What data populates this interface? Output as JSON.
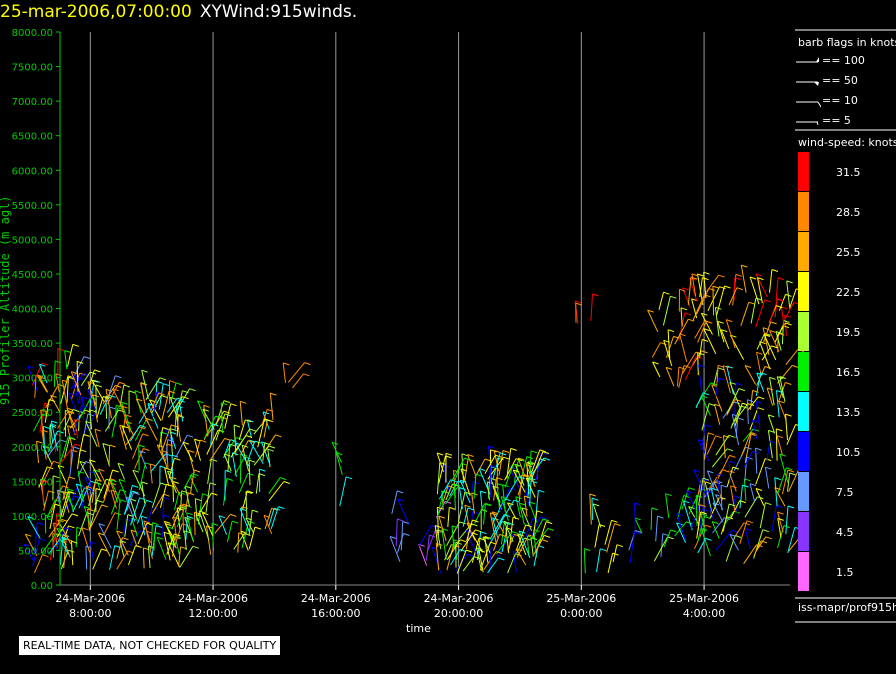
{
  "header": {
    "time": "25-mar-2006,07:00:00",
    "name": "XYWind:915winds."
  },
  "y_axis_label": "915 Profiler Altitude (m agl)",
  "x_axis_label": "time",
  "warning": "REAL-TIME DATA, NOT CHECKED FOR QUALITY",
  "source": "iss-mapr/prof915h",
  "barb_legend": {
    "title": "barb flags in knots",
    "items": [
      {
        "label": "== 100"
      },
      {
        "label": "== 50"
      },
      {
        "label": "== 10"
      },
      {
        "label": "== 5"
      }
    ]
  },
  "colors": {
    "axis": "#00cc00",
    "title_time": "#ffff00",
    "gridline": "#999999"
  },
  "chart_data": {
    "type": "scatter",
    "subtype": "wind-barb time-height",
    "ylim": [
      0,
      8000
    ],
    "yticks": [
      "0.00",
      "500.00",
      "1000.00",
      "1500.00",
      "2000.00",
      "2500.00",
      "3000.00",
      "3500.00",
      "4000.00",
      "4500.00",
      "5000.00",
      "5500.00",
      "6000.00",
      "6500.00",
      "7000.00",
      "7500.00",
      "8000.00"
    ],
    "xlim_hours": [
      6.1,
      10.8
    ],
    "xlim_label": "hours from 24-Mar-2006 0:00 (display range 24-Mar-2006 ~6:00 to 25-Mar-2006 ~10:50)",
    "xticks": [
      {
        "hour": 8,
        "line1": "24-Mar-2006",
        "line2": "8:00:00"
      },
      {
        "hour": 12,
        "line1": "24-Mar-2006",
        "line2": "12:00:00"
      },
      {
        "hour": 16,
        "line1": "24-Mar-2006",
        "line2": "16:00:00"
      },
      {
        "hour": 20,
        "line1": "24-Mar-2006",
        "line2": "20:00:00"
      },
      {
        "hour": 24,
        "line1": "25-Mar-2006",
        "line2": "0:00:00"
      },
      {
        "hour": 28,
        "line1": "25-Mar-2006",
        "line2": "4:00:00"
      }
    ],
    "x_hour_range": [
      6.1,
      30.8
    ],
    "grid": "vertical at ticks",
    "colorbar": {
      "title": "wind-speed: knots",
      "levels": [
        {
          "label": "31.5",
          "color": "#ff0000"
        },
        {
          "label": "28.5",
          "color": "#ff8800"
        },
        {
          "label": "25.5",
          "color": "#ffaa00"
        },
        {
          "label": "22.5",
          "color": "#ffff00"
        },
        {
          "label": "19.5",
          "color": "#aaff33"
        },
        {
          "label": "16.5",
          "color": "#00ee00"
        },
        {
          "label": "13.5",
          "color": "#00ffff"
        },
        {
          "label": "10.5",
          "color": "#0000ff"
        },
        {
          "label": "7.5",
          "color": "#6699ff"
        },
        {
          "label": "4.5",
          "color": "#8833ff"
        },
        {
          "label": "1.5",
          "color": "#ff66ff"
        }
      ]
    },
    "clusters": [
      {
        "t": [
          6.1,
          8.0
        ],
        "alt": [
          150,
          3200
        ],
        "speed": [
          8,
          32
        ],
        "density": 0.6
      },
      {
        "t": [
          8.0,
          11.0
        ],
        "alt": [
          150,
          2700
        ],
        "speed": [
          8,
          30
        ],
        "density": 0.6
      },
      {
        "t": [
          11.0,
          14.0
        ],
        "alt": [
          400,
          2400
        ],
        "speed": [
          12,
          28
        ],
        "density": 0.45
      },
      {
        "t": [
          14.1,
          14.7
        ],
        "alt": [
          2850,
          2950
        ],
        "speed": [
          27,
          30
        ],
        "density": 0.02
      },
      {
        "t": [
          15.5,
          16.6
        ],
        "alt": [
          1100,
          1800
        ],
        "speed": [
          14,
          24
        ],
        "density": 0.02
      },
      {
        "t": [
          17.3,
          19.3
        ],
        "alt": [
          250,
          1050
        ],
        "speed": [
          2,
          10
        ],
        "density": 0.2
      },
      {
        "t": [
          19.3,
          22.6
        ],
        "alt": [
          150,
          1650
        ],
        "speed": [
          10,
          26
        ],
        "density": 0.9
      },
      {
        "t": [
          23.8,
          24.4
        ],
        "alt": [
          3750,
          3950
        ],
        "speed": [
          28,
          32
        ],
        "density": 0.02
      },
      {
        "t": [
          24.0,
          25.3
        ],
        "alt": [
          150,
          1000
        ],
        "speed": [
          12,
          30
        ],
        "density": 0.25
      },
      {
        "t": [
          25.3,
          28.0
        ],
        "alt": [
          300,
          1100
        ],
        "speed": [
          8,
          22
        ],
        "density": 0.25
      },
      {
        "t": [
          26.3,
          30.8
        ],
        "alt": [
          2800,
          4300
        ],
        "speed": [
          20,
          32
        ],
        "density": 0.35
      },
      {
        "t": [
          27.6,
          30.8
        ],
        "alt": [
          300,
          2800
        ],
        "speed": [
          6,
          30
        ],
        "density": 0.45
      }
    ]
  }
}
